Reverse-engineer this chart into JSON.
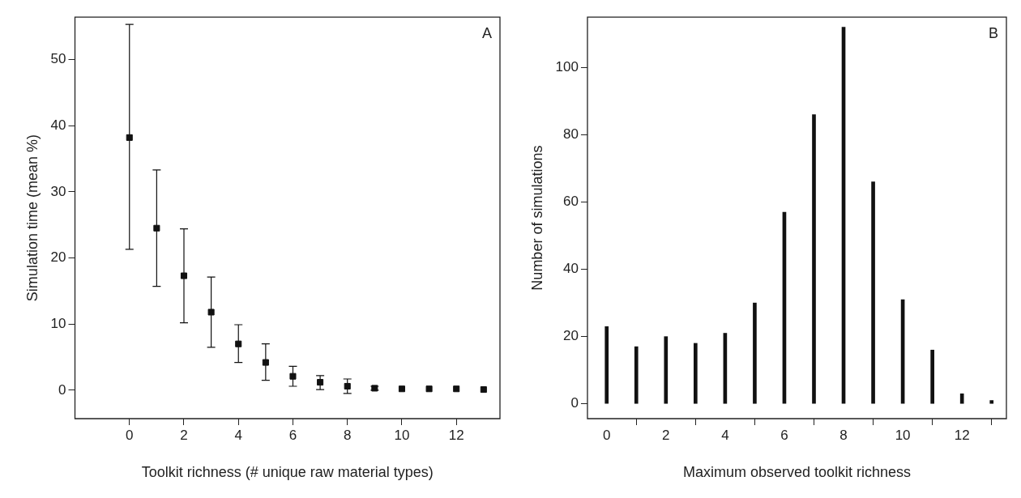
{
  "chart_data": [
    {
      "type": "scatter",
      "xlabel": "Toolkit richness (# unique raw material types)",
      "ylabel": "Simulation time (mean %)",
      "annotations": [
        "A"
      ],
      "x": [
        0,
        1,
        2,
        3,
        4,
        5,
        6,
        7,
        8,
        9,
        10,
        11,
        12,
        13
      ],
      "series": [
        {
          "color": "#111111",
          "values": [
            38.2,
            24.5,
            17.3,
            11.8,
            7.0,
            4.2,
            2.1,
            1.2,
            0.6,
            0.3,
            0.2,
            0.2,
            0.2,
            0.1
          ],
          "errors": [
            [
              21.3,
              55.3
            ],
            [
              15.7,
              33.3
            ],
            [
              10.2,
              24.4
            ],
            [
              6.5,
              17.1
            ],
            [
              4.2,
              9.9
            ],
            [
              1.5,
              7.0
            ],
            [
              0.6,
              3.6
            ],
            [
              0.1,
              2.2
            ],
            [
              -0.5,
              1.7
            ],
            [
              0.0,
              0.6
            ],
            null,
            null,
            null,
            null
          ]
        }
      ],
      "xlim": [
        -2,
        13.6
      ],
      "xticks": [
        0,
        2,
        4,
        6,
        8,
        10,
        12
      ],
      "ylim": [
        -4.3,
        56.4
      ],
      "yticks": [
        0,
        10,
        20,
        30,
        40,
        50
      ],
      "grid": false,
      "legend": false,
      "marker": "square"
    },
    {
      "type": "bar",
      "xlabel": "Maximum observed toolkit richness",
      "ylabel": "Number of simulations",
      "annotations": [
        "B"
      ],
      "x": [
        0,
        1,
        2,
        3,
        4,
        5,
        6,
        7,
        8,
        9,
        10,
        11,
        12,
        13
      ],
      "series": [
        {
          "color": "#111111",
          "values": [
            23,
            17,
            20,
            18,
            21,
            30,
            57,
            86,
            112,
            66,
            31,
            16,
            3,
            1
          ]
        }
      ],
      "xlim": [
        -0.65,
        13.5
      ],
      "xticks": [
        0,
        2,
        4,
        6,
        8,
        10,
        12
      ],
      "ylim": [
        -4.4,
        115
      ],
      "yticks": [
        0,
        20,
        40,
        60,
        80,
        100
      ],
      "grid": false,
      "legend": false
    }
  ]
}
